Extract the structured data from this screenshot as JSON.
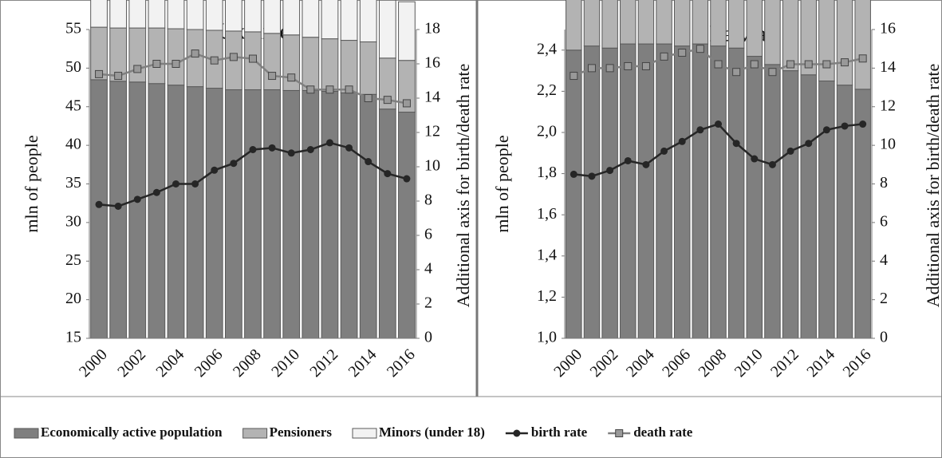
{
  "chart_data": [
    {
      "type": "bar",
      "title": "Ukraine",
      "ylabel": "mln of people",
      "y2label": "Additional  axis for birth/death rate",
      "categories": [
        "2000",
        null,
        "2002",
        null,
        "2004",
        null,
        "2006",
        null,
        "2008",
        null,
        "2010",
        null,
        "2012",
        null,
        "2014",
        null,
        "2016"
      ],
      "ylim": [
        15,
        55
      ],
      "yticks": [
        15,
        20,
        25,
        30,
        35,
        40,
        45,
        50,
        55
      ],
      "y2lim": [
        0,
        18
      ],
      "y2ticks": [
        0,
        2,
        4,
        6,
        8,
        10,
        12,
        14,
        16,
        18
      ],
      "series": [
        {
          "name": "Economically active population",
          "color": "#7f7f7f",
          "values": [
            33.5,
            33.3,
            33.2,
            33.0,
            32.8,
            32.6,
            32.4,
            32.2,
            32.2,
            32.2,
            32.1,
            32.1,
            32.0,
            31.8,
            31.6,
            29.7,
            29.3
          ]
        },
        {
          "name": "Pensioners",
          "color": "#b3b3b3",
          "values": [
            6.8,
            6.9,
            7.0,
            7.2,
            7.3,
            7.4,
            7.5,
            7.6,
            7.5,
            7.3,
            7.2,
            6.9,
            6.8,
            6.8,
            6.8,
            6.6,
            6.7
          ]
        },
        {
          "name": "Minors (under 18)",
          "color": "#f2f2f2",
          "values": [
            11.0,
            10.7,
            10.3,
            9.8,
            9.5,
            9.1,
            8.8,
            8.5,
            8.3,
            8.1,
            8.0,
            8.0,
            8.0,
            7.9,
            7.8,
            7.5,
            7.6
          ]
        },
        {
          "name": "birth rate",
          "type": "line",
          "axis": "y2",
          "marker": "circle",
          "color": "#262626",
          "values": [
            7.8,
            7.7,
            8.1,
            8.5,
            9.0,
            9.0,
            9.8,
            10.2,
            11.0,
            11.1,
            10.8,
            11.0,
            11.4,
            11.1,
            10.3,
            9.6,
            9.3
          ]
        },
        {
          "name": "death rate",
          "type": "line",
          "axis": "y2",
          "marker": "square",
          "color": "#808080",
          "values": [
            15.4,
            15.3,
            15.7,
            16.0,
            16.0,
            16.6,
            16.2,
            16.4,
            16.3,
            15.3,
            15.2,
            14.5,
            14.5,
            14.5,
            14.0,
            13.9,
            13.7
          ]
        }
      ]
    },
    {
      "type": "bar",
      "title": "Latvia",
      "ylabel": "mln of people",
      "y2label": "Additional  axis for birth/death rate",
      "categories": [
        "2000",
        null,
        "2002",
        null,
        "2004",
        null,
        "2006",
        null,
        "2008",
        null,
        "2010",
        null,
        "2012",
        null,
        "2014",
        null,
        "2016"
      ],
      "ylim": [
        1.0,
        2.5
      ],
      "yticks": [
        {
          "value": 1.0,
          "label": "1,0"
        },
        {
          "value": 1.2,
          "label": "1,2"
        },
        {
          "value": 1.4,
          "label": "1,4"
        },
        {
          "value": 1.6,
          "label": "1,6"
        },
        {
          "value": 1.8,
          "label": "1,8"
        },
        {
          "value": 2.0,
          "label": "2,0"
        },
        {
          "value": 2.2,
          "label": "2,2"
        },
        {
          "value": 2.4,
          "label": "2,4"
        }
      ],
      "y2lim": [
        0,
        16
      ],
      "y2ticks": [
        0,
        2,
        4,
        6,
        8,
        10,
        12,
        14,
        16
      ],
      "series": [
        {
          "color": "#7f7f7f",
          "values": [
            1.4,
            1.42,
            1.41,
            1.43,
            1.43,
            1.43,
            1.42,
            1.43,
            1.42,
            1.41,
            1.37,
            1.33,
            1.3,
            1.28,
            1.25,
            1.23,
            1.21
          ]
        },
        {
          "color": "#b3b3b3",
          "values": [
            0.56,
            0.53,
            0.53,
            0.5,
            0.49,
            0.48,
            0.48,
            0.46,
            0.47,
            0.45,
            0.45,
            0.45,
            0.45,
            0.45,
            0.46,
            0.46,
            0.46
          ]
        },
        {
          "color": "#f2f2f2",
          "values": [
            0.42,
            0.4,
            0.39,
            0.37,
            0.36,
            0.34,
            0.33,
            0.32,
            0.3,
            0.3,
            0.3,
            0.3,
            0.3,
            0.29,
            0.29,
            0.29,
            0.3
          ]
        },
        {
          "type": "line",
          "axis": "y2",
          "marker": "circle",
          "color": "#262626",
          "values": [
            8.5,
            8.4,
            8.7,
            9.2,
            9.0,
            9.7,
            10.2,
            10.8,
            11.1,
            10.1,
            9.3,
            9.0,
            9.7,
            10.1,
            10.8,
            11.0,
            11.1
          ]
        },
        {
          "type": "line",
          "axis": "y2",
          "marker": "square",
          "color": "#808080",
          "values": [
            13.6,
            14.0,
            14.0,
            14.1,
            14.1,
            14.6,
            14.8,
            15.0,
            14.2,
            13.8,
            14.2,
            13.8,
            14.2,
            14.2,
            14.2,
            14.3,
            14.5
          ]
        }
      ]
    }
  ]
}
